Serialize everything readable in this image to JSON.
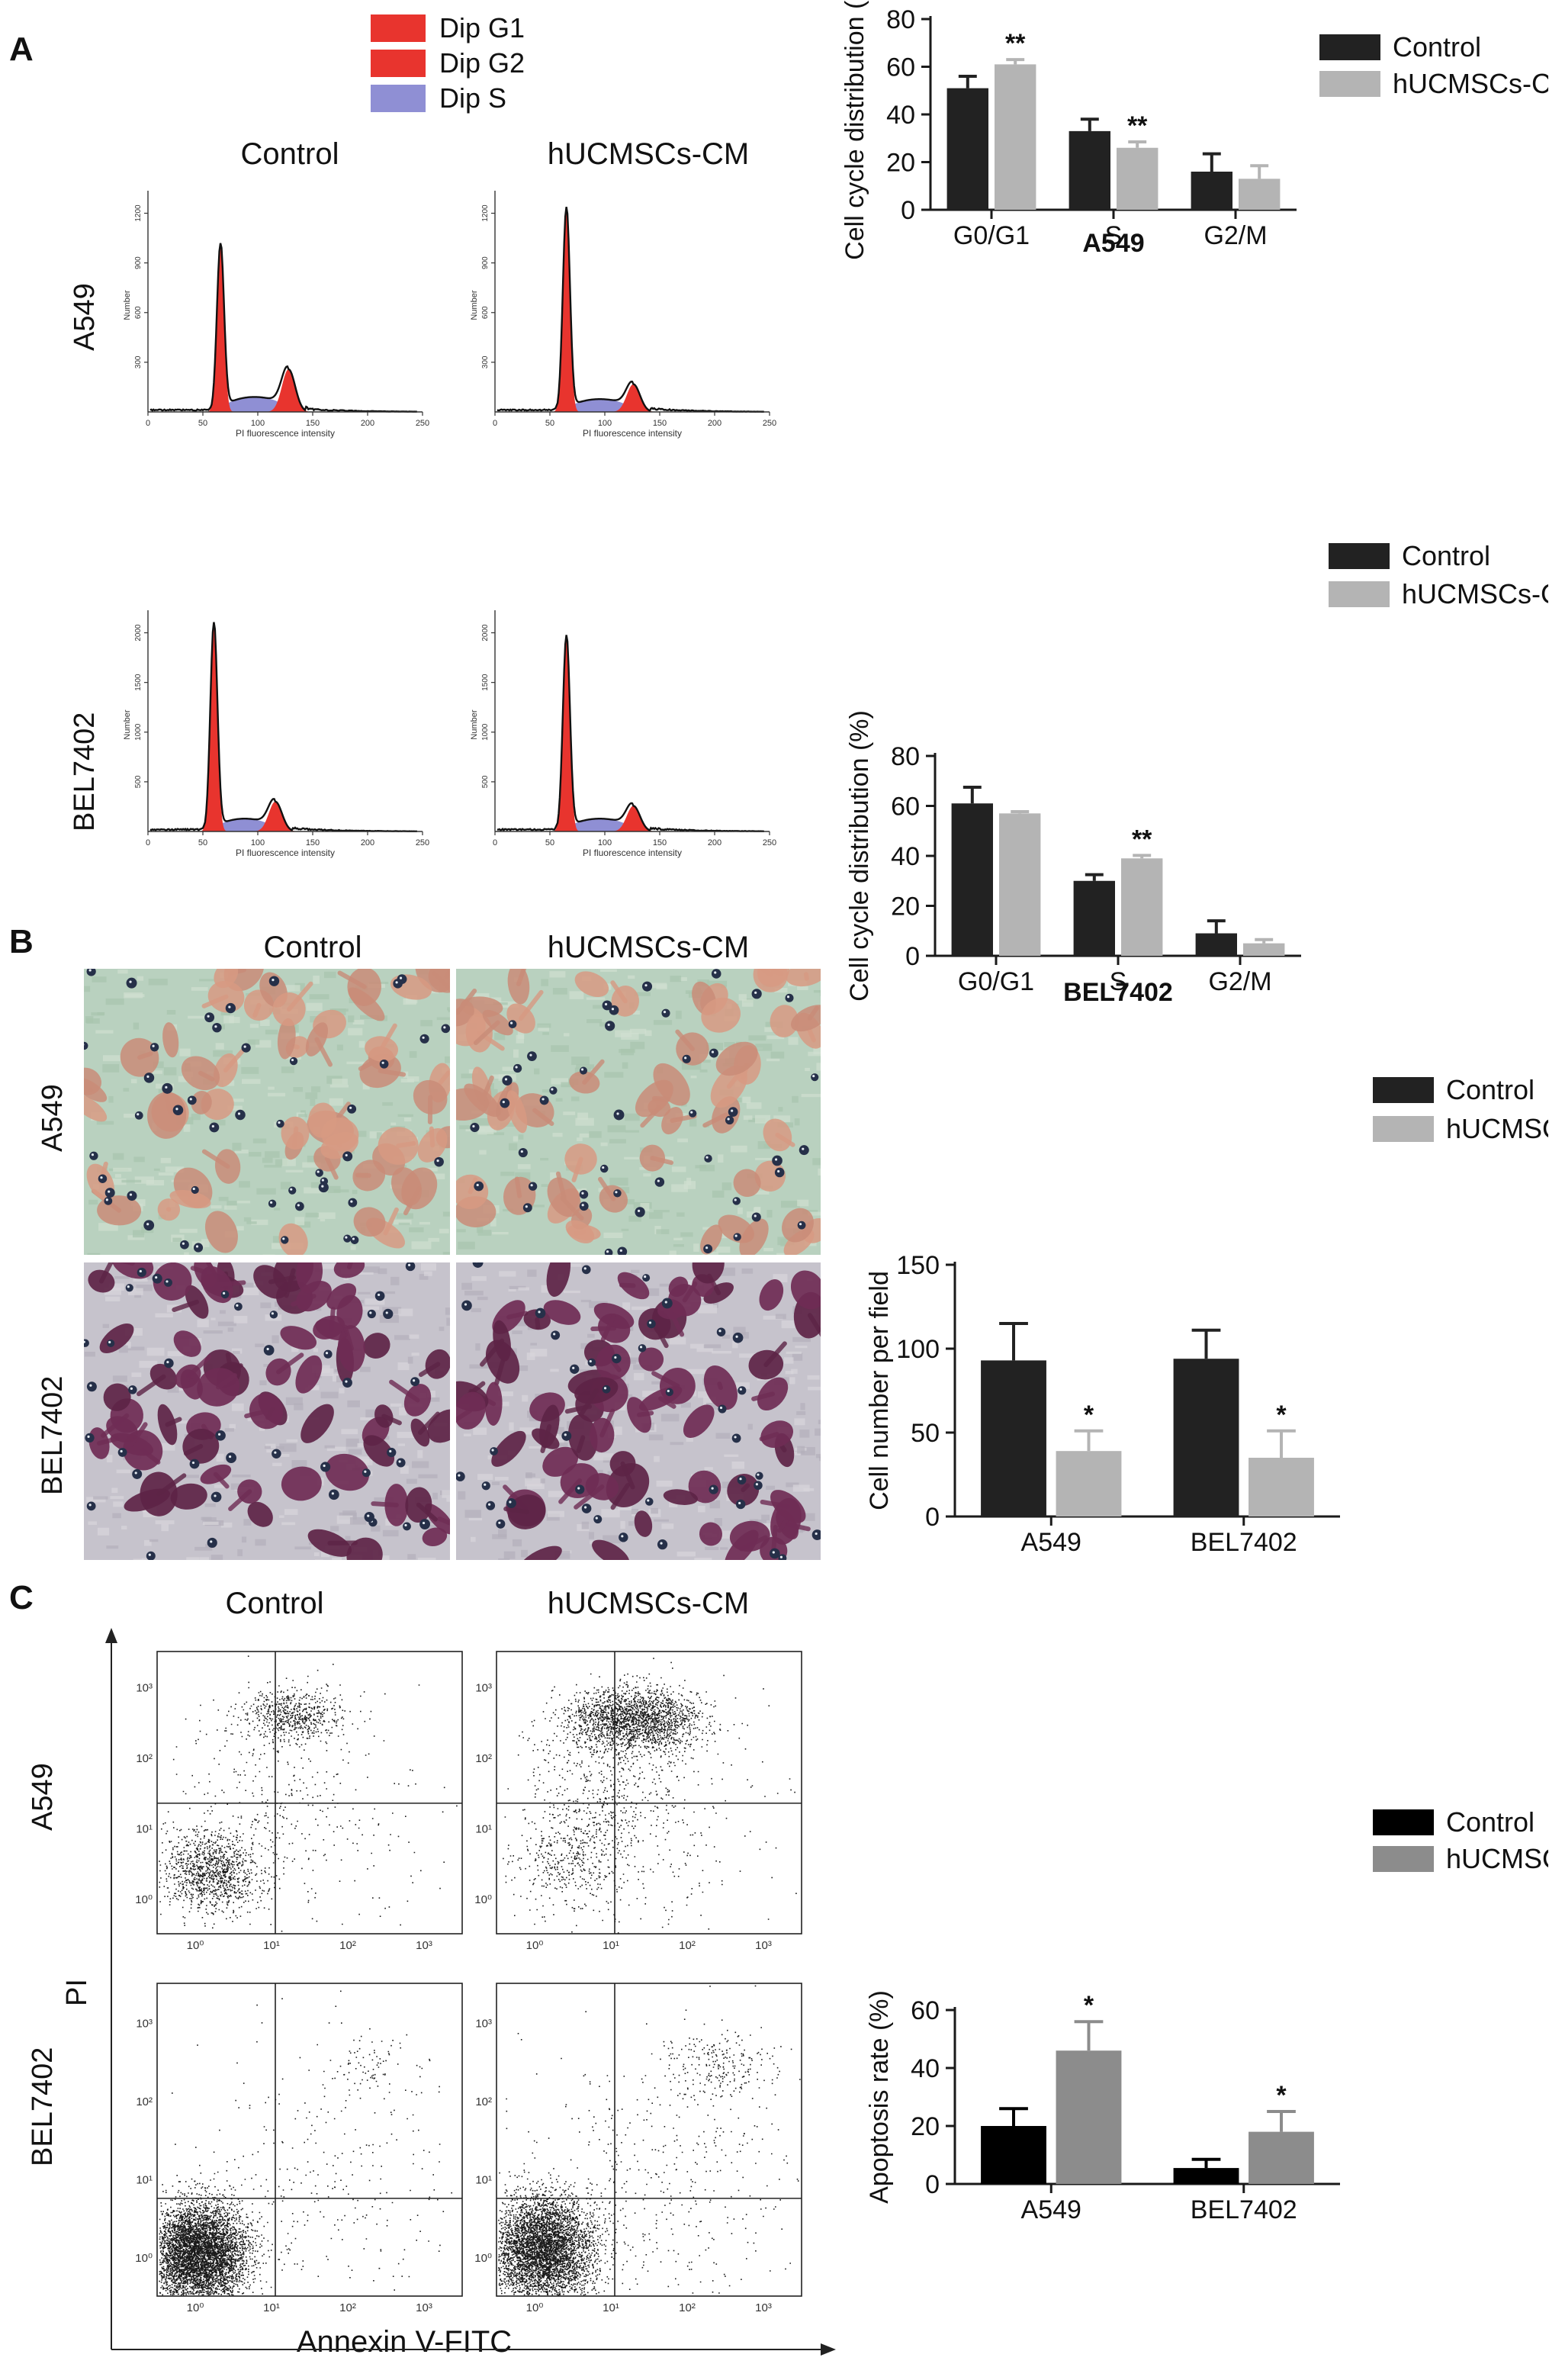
{
  "panel_a": {
    "letter": "A",
    "legend": [
      {
        "label": "Dip G1",
        "color": "#e8342e"
      },
      {
        "label": "Dip G2",
        "color": "#e8342e"
      },
      {
        "label": "Dip S",
        "color": "#8f8fd4"
      }
    ],
    "columns": [
      "Control",
      "hUCMSCs-CM"
    ],
    "rows": [
      "A549",
      "BEL7402"
    ],
    "histogram_xlabel": "PI fluorescence intensity",
    "histogram_ylabel": "Number",
    "histogram_xticks": [
      "0",
      "50",
      "100",
      "150",
      "200",
      "250"
    ],
    "histograms": [
      {
        "row": "A549",
        "col": "Control",
        "yticks": [
          "300",
          "600",
          "900",
          "1200"
        ]
      },
      {
        "row": "A549",
        "col": "hUCMSCs-CM",
        "yticks": [
          "300",
          "600",
          "900",
          "1200"
        ]
      },
      {
        "row": "BEL7402",
        "col": "Control",
        "yticks": [
          "500",
          "1000",
          "1500",
          "2000"
        ]
      },
      {
        "row": "BEL7402",
        "col": "hUCMSCs-CM",
        "yticks": [
          "500",
          "1000",
          "1500",
          "2000"
        ]
      }
    ]
  },
  "panel_b": {
    "letter": "B",
    "columns": [
      "Control",
      "hUCMSCs-CM"
    ],
    "rows": [
      "A549",
      "BEL7402"
    ]
  },
  "panel_c": {
    "letter": "C",
    "columns": [
      "Control",
      "hUCMSCs-CM"
    ],
    "rows": [
      "A549",
      "BEL7402"
    ],
    "ylabel": "PI",
    "xlabel": "Annexin V-FITC",
    "tick_labels": [
      "10⁰",
      "10¹",
      "10²",
      "10³"
    ]
  },
  "chart_data": [
    {
      "id": "a549_cycle",
      "type": "bar",
      "title": "A549",
      "ylabel": "Cell cycle distribution (%)",
      "xlabel": "",
      "ylim": [
        0,
        80
      ],
      "yticks": [
        0,
        20,
        40,
        60,
        80
      ],
      "categories": [
        "G0/G1",
        "S",
        "G2/M"
      ],
      "legend_position": "top-right",
      "series": [
        {
          "name": "Control",
          "color": "#222222",
          "values": [
            51,
            33,
            16
          ],
          "errors": [
            5,
            5,
            7.5
          ],
          "annotations": [
            "",
            "",
            ""
          ]
        },
        {
          "name": "hUCMSCs-CM",
          "color": "#b4b4b4",
          "values": [
            61,
            26,
            13
          ],
          "errors": [
            2,
            2.5,
            5.5
          ],
          "annotations": [
            "**",
            "**",
            ""
          ]
        }
      ]
    },
    {
      "id": "bel7402_cycle",
      "type": "bar",
      "title": "BEL7402",
      "ylabel": "Cell cycle distribution (%)",
      "xlabel": "",
      "ylim": [
        0,
        80
      ],
      "yticks": [
        0,
        20,
        40,
        60,
        80
      ],
      "categories": [
        "G0/G1",
        "S",
        "G2/M"
      ],
      "legend_position": "top-right",
      "series": [
        {
          "name": "Control",
          "color": "#222222",
          "values": [
            61,
            30,
            9
          ],
          "errors": [
            6.5,
            2.5,
            5
          ],
          "annotations": [
            "",
            "",
            ""
          ]
        },
        {
          "name": "hUCMSCs-CM",
          "color": "#b4b4b4",
          "values": [
            57,
            39,
            5
          ],
          "errors": [
            0.7,
            1.2,
            1.5
          ],
          "annotations": [
            "",
            "**",
            ""
          ]
        }
      ]
    },
    {
      "id": "migration",
      "type": "bar",
      "title": "",
      "ylabel": "Cell number per field",
      "xlabel": "",
      "ylim": [
        0,
        150
      ],
      "yticks": [
        0,
        50,
        100,
        150
      ],
      "categories": [
        "A549",
        "BEL7402"
      ],
      "legend_position": "top-right",
      "series": [
        {
          "name": "Control",
          "color": "#222222",
          "values": [
            93,
            94
          ],
          "errors": [
            22,
            17
          ],
          "annotations": [
            "",
            ""
          ]
        },
        {
          "name": "hUCMSCs-CM",
          "color": "#b4b4b4",
          "values": [
            39,
            35
          ],
          "errors": [
            12,
            16
          ],
          "annotations": [
            "*",
            "*"
          ]
        }
      ]
    },
    {
      "id": "apoptosis",
      "type": "bar",
      "title": "",
      "ylabel": "Apoptosis rate (%)",
      "xlabel": "",
      "ylim": [
        0,
        60
      ],
      "yticks": [
        0,
        20,
        40,
        60
      ],
      "categories": [
        "A549",
        "BEL7402"
      ],
      "legend_position": "top-right",
      "series": [
        {
          "name": "Control",
          "color": "#000000",
          "values": [
            20,
            5.5
          ],
          "errors": [
            6,
            3
          ],
          "annotations": [
            "",
            ""
          ]
        },
        {
          "name": "hUCMSCs-CM",
          "color": "#8c8c8c",
          "values": [
            46,
            18
          ],
          "errors": [
            10,
            7
          ],
          "annotations": [
            "*",
            "*"
          ]
        }
      ]
    }
  ]
}
